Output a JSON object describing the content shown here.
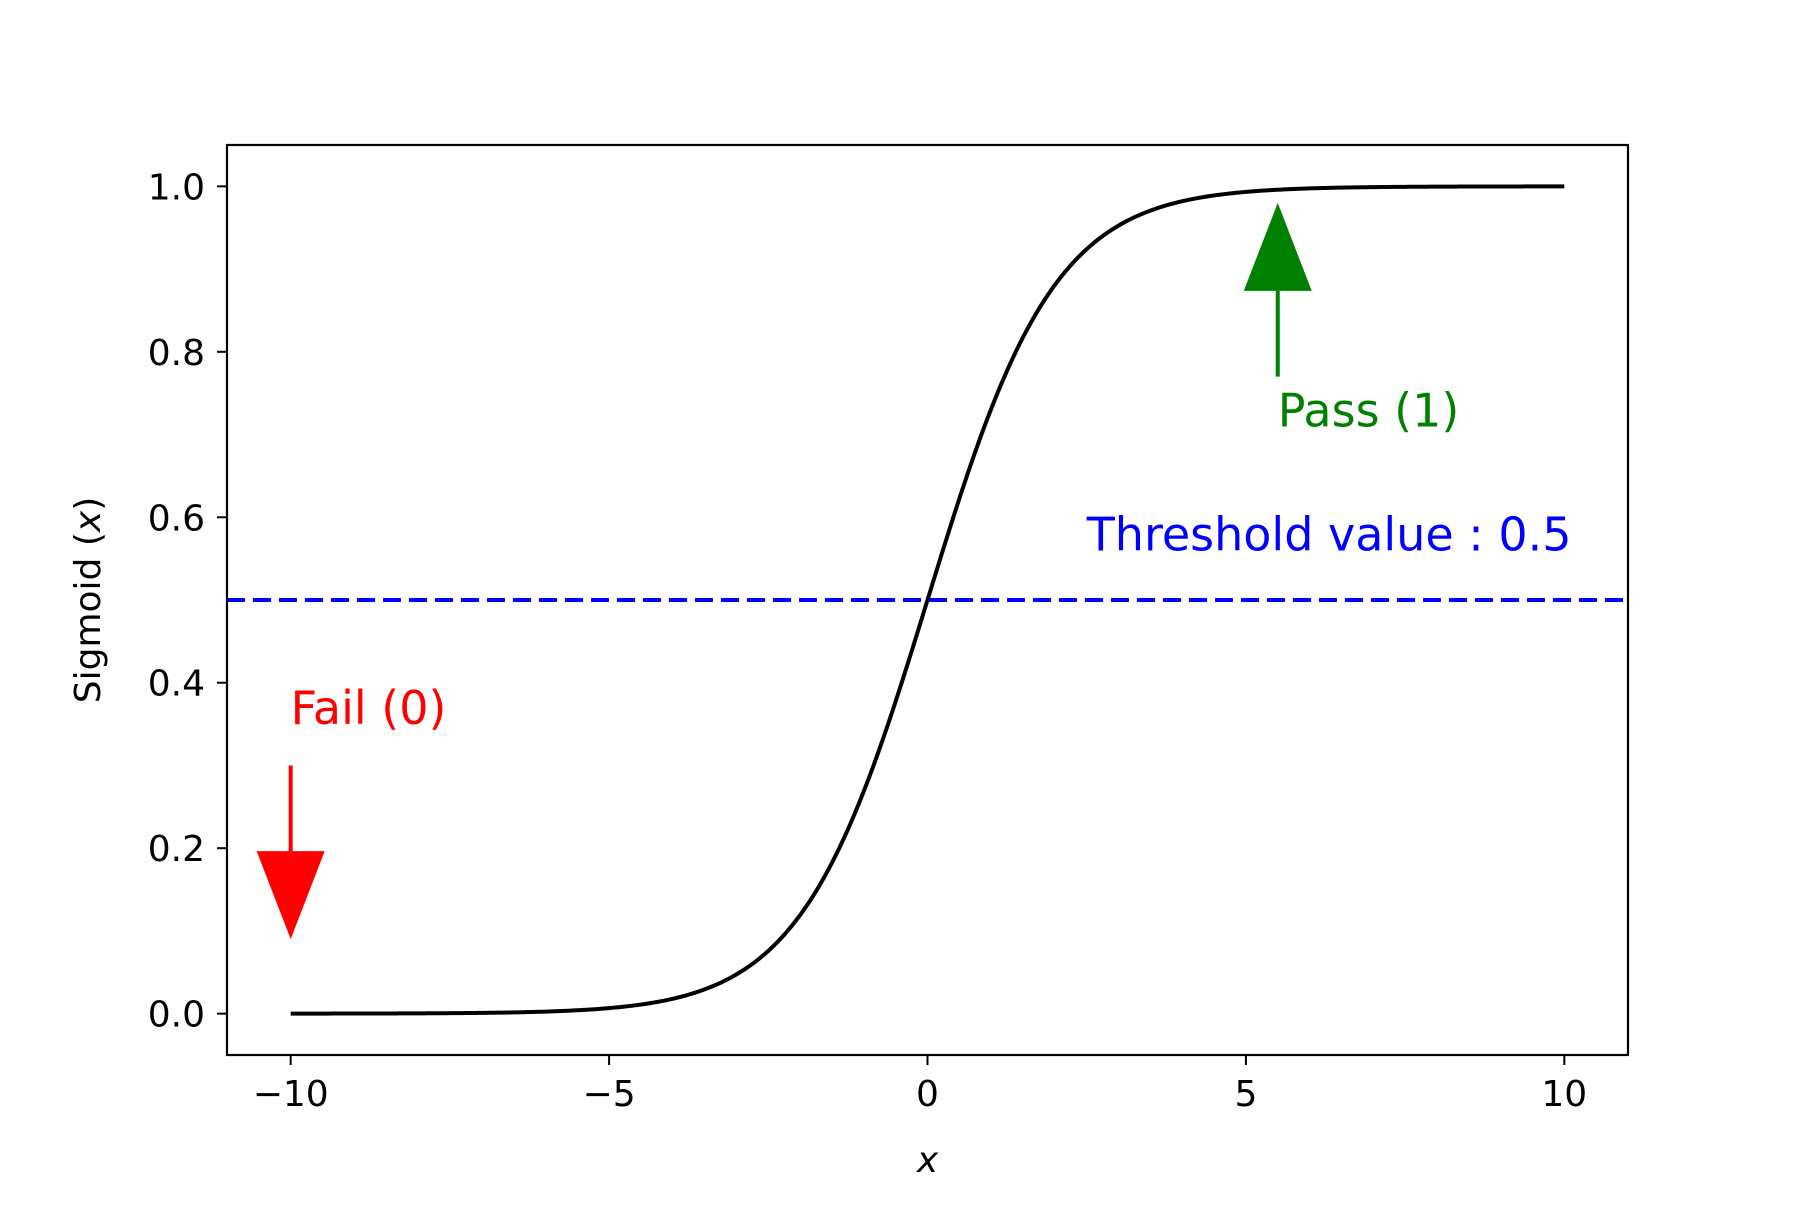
{
  "chart_data": {
    "type": "line",
    "title": "",
    "xlabel": "x",
    "ylabel_prefix": "Sigmoid (",
    "ylabel_var": "x",
    "ylabel_suffix": ")",
    "xlim": [
      -11,
      11
    ],
    "ylim": [
      -0.05,
      1.05
    ],
    "xticks": [
      -10,
      -5,
      0,
      5,
      10
    ],
    "xtick_labels": [
      "−10",
      "−5",
      "0",
      "5",
      "10"
    ],
    "yticks": [
      0.0,
      0.2,
      0.4,
      0.6,
      0.8,
      1.0
    ],
    "ytick_labels": [
      "0.0",
      "0.2",
      "0.4",
      "0.6",
      "0.8",
      "1.0"
    ],
    "grid": false,
    "series": [
      {
        "function": "sigmoid",
        "x_range": [
          -10,
          10
        ],
        "color": "#000000"
      }
    ],
    "reference_lines": [
      {
        "orientation": "horizontal",
        "y": 0.5,
        "style": "dashed",
        "color": "#0000ff"
      }
    ],
    "annotations": [
      {
        "text": "Threshold value : 0.5",
        "color": "#0000ff",
        "x": 2.5,
        "y": 0.56
      },
      {
        "text": "Pass (1)",
        "color": "#008000",
        "x": 5.5,
        "y": 0.71,
        "arrow_from": [
          5.5,
          0.77
        ],
        "arrow_to": [
          5.5,
          0.98
        ]
      },
      {
        "text": "Fail (0)",
        "color": "#ff0000",
        "x": -10.0,
        "y": 0.35,
        "arrow_from": [
          -10.0,
          0.3
        ],
        "arrow_to": [
          -10.0,
          0.09
        ]
      }
    ]
  }
}
